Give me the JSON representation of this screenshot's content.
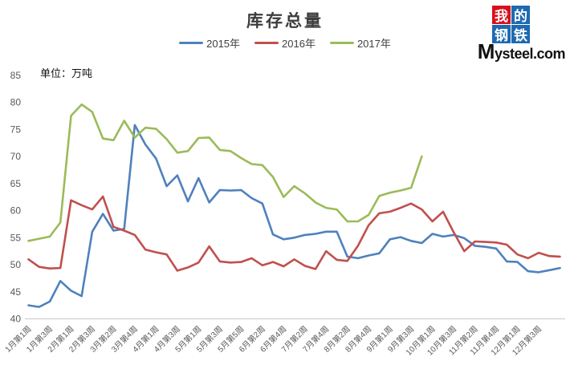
{
  "header": {
    "title": "库存总量",
    "unit_label": "单位：万吨"
  },
  "logo": {
    "grid_chars": [
      "我",
      "的",
      "钢",
      "铁"
    ],
    "site": "Mysteel.com",
    "red": "#d8101c",
    "blue": "#1d6ab0"
  },
  "legend": [
    {
      "label": "2015年",
      "color": "#4f81bd"
    },
    {
      "label": "2016年",
      "color": "#c0504d"
    },
    {
      "label": "2017年",
      "color": "#9bbb59"
    }
  ],
  "chart_data": {
    "type": "line",
    "title": "库存总量",
    "ylabel": "单位：万吨",
    "grid": false,
    "legend_position": "top",
    "y_axis": {
      "min": 40,
      "max": 85,
      "tick_step": 5,
      "ticks": [
        85,
        80,
        75,
        70,
        65,
        60,
        55,
        50,
        45,
        40
      ]
    },
    "x_label_every": 2,
    "x_tick_labels": [
      "1月第1周",
      "1月第3周",
      "2月第1周",
      "2月第3周",
      "3月第2周",
      "3月第4周",
      "4月第1周",
      "4月第3周",
      "5月第1周",
      "5月第3周",
      "5月第5周",
      "6月第2周",
      "6月第4周",
      "7月第2周",
      "7月第4周",
      "8月第2周",
      "8月第4周",
      "9月第1周",
      "9月第3周",
      "10月第1周",
      "10月第3周",
      "11月第2周",
      "11月第4周",
      "12月第1周",
      "12月第3周"
    ],
    "series": [
      {
        "name": "2015年",
        "color": "#4f81bd",
        "values": [
          42.5,
          42.2,
          43.2,
          47.0,
          45.2,
          44.2,
          56.1,
          59.4,
          56.3,
          56.6,
          75.8,
          72.2,
          69.6,
          64.5,
          66.5,
          61.7,
          66.0,
          61.5,
          63.8,
          63.7,
          63.8,
          62.3,
          61.3,
          55.6,
          54.7,
          55.0,
          55.5,
          55.7,
          56.1,
          56.1,
          51.5,
          51.2,
          51.7,
          52.1,
          54.7,
          55.1,
          54.4,
          54.0,
          55.7,
          55.2,
          55.5,
          54.9,
          53.5,
          53.3,
          53.0,
          50.6,
          50.5,
          48.8,
          48.6,
          49.0,
          49.4
        ]
      },
      {
        "name": "2016年",
        "color": "#c0504d",
        "values": [
          51.0,
          49.6,
          49.3,
          49.4,
          61.9,
          61.0,
          60.2,
          62.6,
          57.0,
          56.3,
          55.5,
          52.8,
          52.3,
          51.9,
          48.9,
          49.5,
          50.4,
          53.4,
          50.6,
          50.4,
          50.5,
          51.2,
          49.9,
          50.5,
          49.7,
          51.0,
          49.8,
          49.2,
          52.5,
          50.9,
          50.7,
          53.5,
          57.3,
          59.5,
          59.8,
          60.5,
          61.3,
          60.2,
          58.0,
          59.8,
          56.0,
          52.5,
          54.3,
          54.2,
          54.1,
          53.7,
          51.9,
          51.2,
          52.2,
          51.6,
          51.5
        ]
      },
      {
        "name": "2017年",
        "color": "#9bbb59",
        "values": [
          54.4,
          54.8,
          55.2,
          57.8,
          77.5,
          79.6,
          78.2,
          73.3,
          73.0,
          76.6,
          73.5,
          75.3,
          75.1,
          73.2,
          70.7,
          71.0,
          73.4,
          73.5,
          71.2,
          71.0,
          69.7,
          68.6,
          68.4,
          66.2,
          62.5,
          64.5,
          63.2,
          61.5,
          60.5,
          60.2,
          58.0,
          58.0,
          59.2,
          62.7,
          63.3,
          63.7,
          64.2,
          70.0
        ]
      }
    ]
  }
}
